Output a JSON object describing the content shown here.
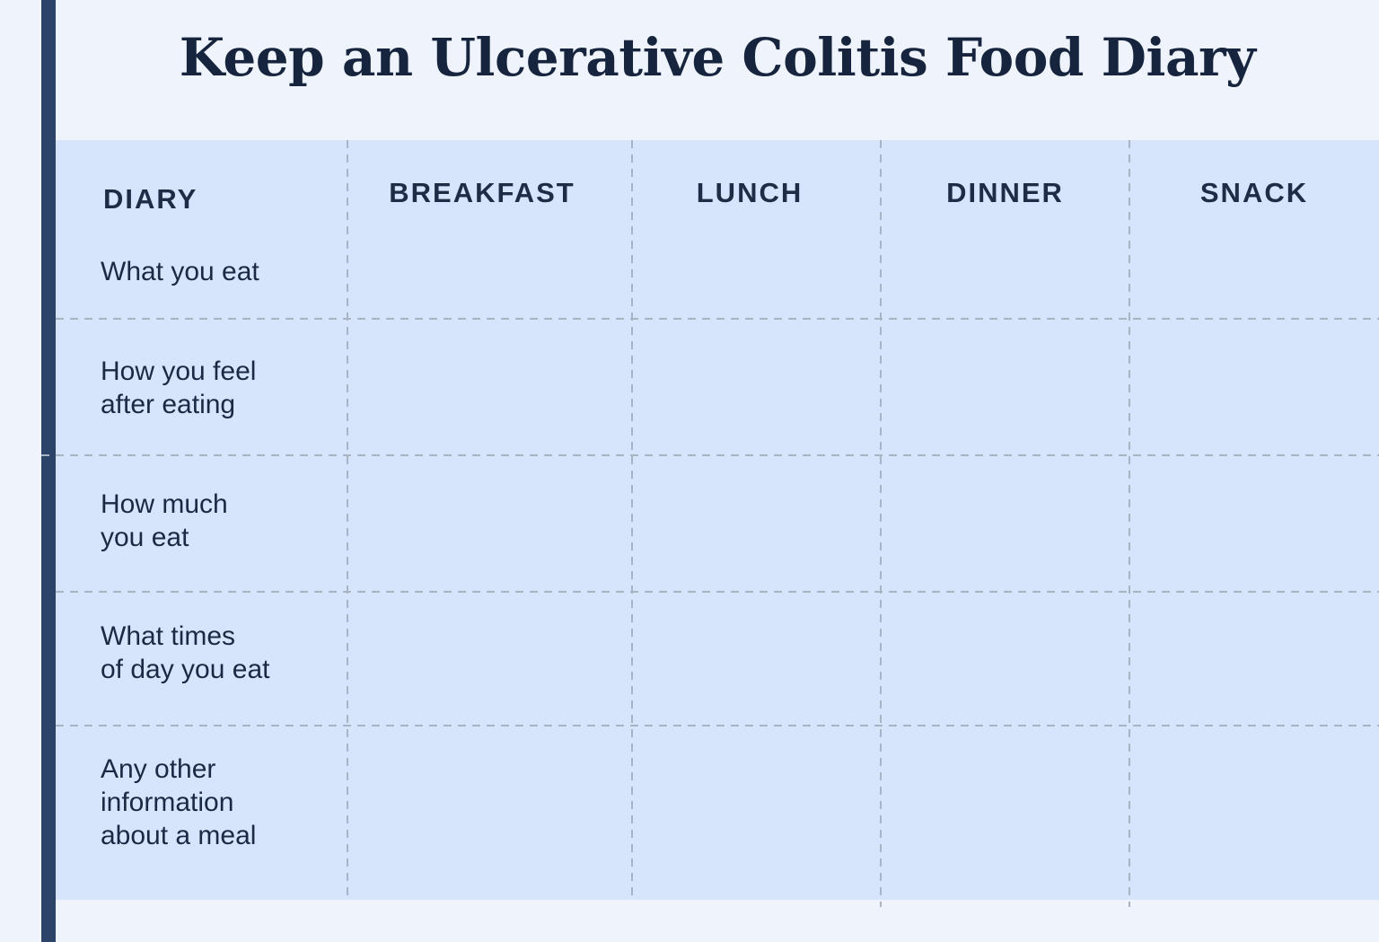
{
  "title": "Keep an Ulcerative Colitis Food Diary",
  "header": {
    "diary": "DIARY",
    "columns": [
      "BREAKFAST",
      "LUNCH",
      "DINNER",
      "SNACK"
    ]
  },
  "rows": [
    [
      "What you eat"
    ],
    [
      "How you feel",
      "after eating"
    ],
    [
      "How much",
      "you eat"
    ],
    [
      "What times",
      "of day you eat"
    ],
    [
      "Any other",
      "information",
      "about a meal"
    ]
  ],
  "colors": {
    "background": "#eff4fc",
    "table": "#d6e5fb",
    "accent_bar": "#2b4467",
    "text": "#1a2a44",
    "grid_line": "#a9b4c3"
  }
}
